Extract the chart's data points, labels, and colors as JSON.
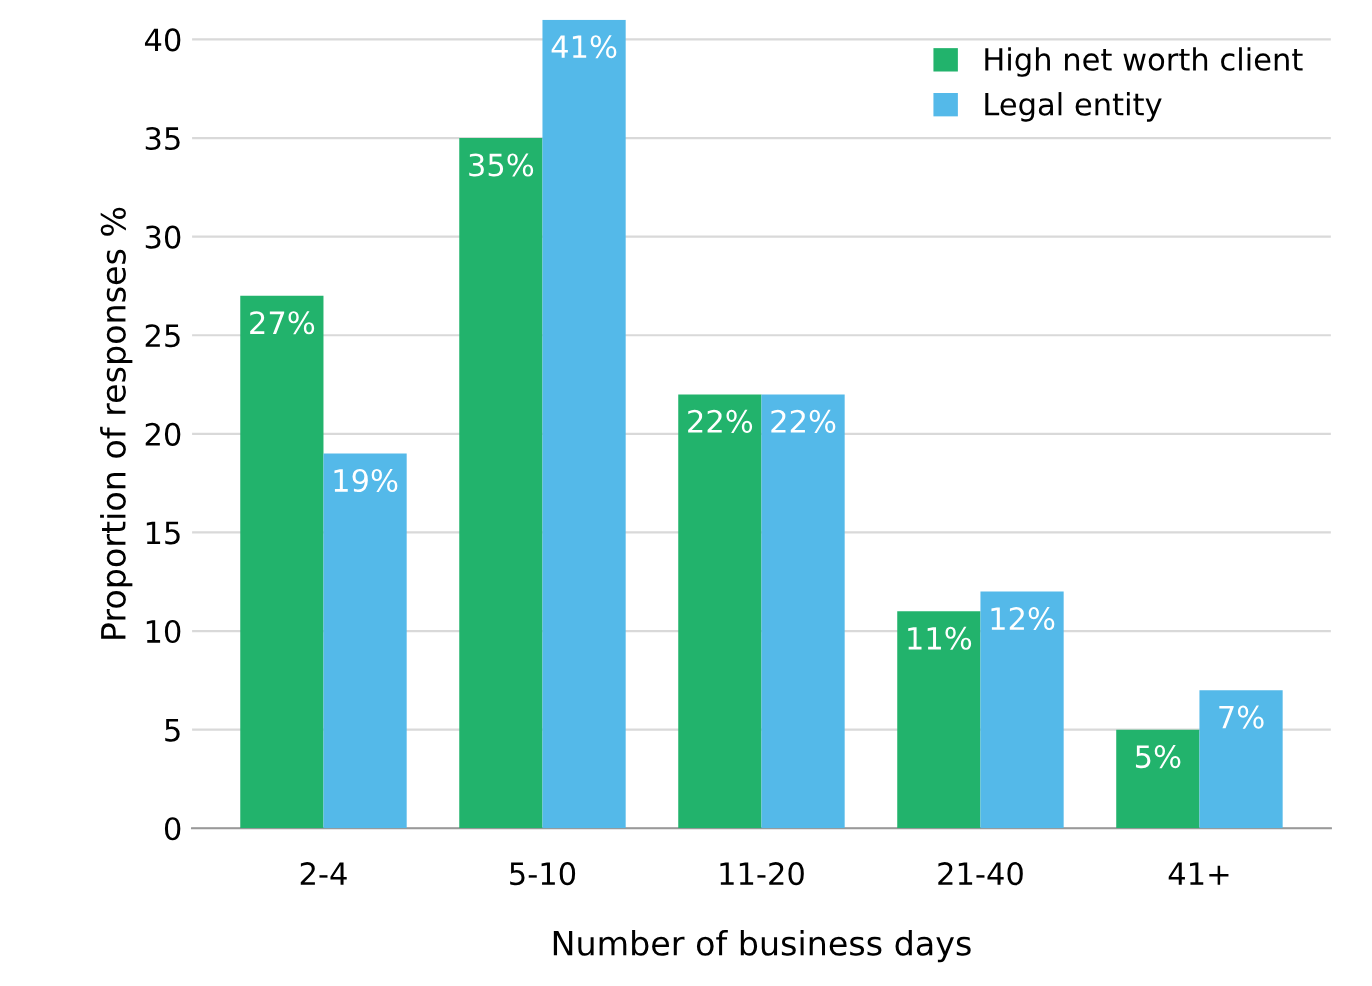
{
  "chart_data": {
    "type": "bar",
    "xlabel": "Number of business days",
    "ylabel": "Proportion of responses %",
    "categories": [
      "2-4",
      "5-10",
      "11-20",
      "21-40",
      "41+"
    ],
    "series": [
      {
        "name": "High net worth client",
        "color": "#22b36c",
        "values": [
          27,
          35,
          22,
          11,
          5
        ],
        "value_labels": [
          "27%",
          "35%",
          "22%",
          "11%",
          "5%"
        ]
      },
      {
        "name": "Legal entity",
        "color": "#54b9e9",
        "values": [
          19,
          41,
          22,
          12,
          7
        ],
        "value_labels": [
          "19%",
          "41%",
          "22%",
          "12%",
          "7%"
        ]
      }
    ],
    "ylim": [
      0,
      41
    ],
    "yticks": [
      0,
      5,
      10,
      15,
      20,
      25,
      30,
      35,
      40
    ],
    "grid": "y",
    "legend": "top right"
  }
}
